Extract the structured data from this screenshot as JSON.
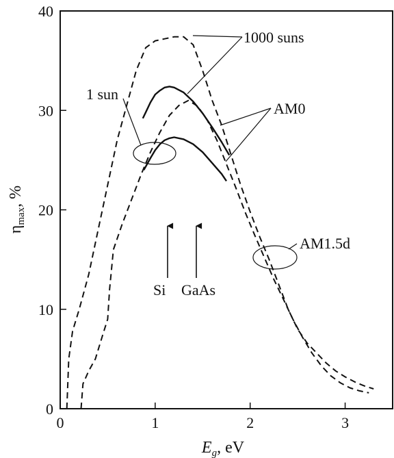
{
  "chart_data": {
    "type": "line",
    "xlabel": {
      "symbol": "E",
      "subscript": "g",
      "unit": ", eV"
    },
    "ylabel": {
      "symbol": "η",
      "subscript": "max",
      "unit": ", %"
    },
    "xlim": [
      0,
      3.5
    ],
    "ylim": [
      0,
      40
    ],
    "xticks": [
      "0",
      "1",
      "2",
      "3"
    ],
    "yticks": [
      "0",
      "10",
      "20",
      "30",
      "40"
    ],
    "grid": false,
    "series": [
      {
        "name": "AM0, 1000 suns",
        "style": "dashed",
        "points": [
          [
            0.07,
            0
          ],
          [
            0.09,
            5
          ],
          [
            0.13,
            7.8
          ],
          [
            0.2,
            10
          ],
          [
            0.3,
            13.5
          ],
          [
            0.4,
            18
          ],
          [
            0.5,
            22.5
          ],
          [
            0.6,
            27
          ],
          [
            0.7,
            30.5
          ],
          [
            0.8,
            34
          ],
          [
            0.9,
            36.3
          ],
          [
            1.0,
            37.0
          ],
          [
            1.1,
            37.2
          ],
          [
            1.2,
            37.4
          ],
          [
            1.3,
            37.4
          ],
          [
            1.4,
            36.6
          ],
          [
            1.5,
            34.0
          ],
          [
            1.6,
            31.0
          ],
          [
            1.7,
            28.5
          ],
          [
            1.8,
            25.5
          ],
          [
            1.9,
            22.5
          ],
          [
            2.0,
            19.8
          ],
          [
            2.1,
            17.3
          ],
          [
            2.2,
            15.0
          ],
          [
            2.3,
            12.5
          ],
          [
            2.4,
            10.0
          ],
          [
            2.5,
            8.0
          ],
          [
            2.6,
            6.6
          ],
          [
            2.7,
            5.6
          ],
          [
            2.8,
            4.6
          ],
          [
            2.9,
            3.8
          ],
          [
            3.0,
            3.2
          ],
          [
            3.1,
            2.7
          ],
          [
            3.2,
            2.3
          ],
          [
            3.3,
            2.0
          ]
        ]
      },
      {
        "name": "AM1.5d, 1000 suns",
        "style": "dashed",
        "points": [
          [
            0.22,
            0
          ],
          [
            0.24,
            2.5
          ],
          [
            0.3,
            3.8
          ],
          [
            0.37,
            5
          ],
          [
            0.45,
            7.5
          ],
          [
            0.5,
            9
          ],
          [
            0.52,
            12
          ],
          [
            0.56,
            16
          ],
          [
            0.65,
            18.5
          ],
          [
            0.75,
            21
          ],
          [
            0.85,
            23.5
          ],
          [
            0.95,
            25.8
          ],
          [
            1.05,
            27.8
          ],
          [
            1.15,
            29.5
          ],
          [
            1.25,
            30.5
          ],
          [
            1.35,
            31.0
          ],
          [
            1.45,
            30.4
          ],
          [
            1.55,
            29.0
          ],
          [
            1.65,
            27.0
          ],
          [
            1.75,
            24.6
          ],
          [
            1.85,
            22.2
          ],
          [
            1.95,
            19.7
          ],
          [
            2.05,
            17.4
          ],
          [
            2.15,
            15.2
          ],
          [
            2.25,
            13.0
          ],
          [
            2.35,
            11.0
          ],
          [
            2.45,
            9.0
          ],
          [
            2.55,
            7.2
          ],
          [
            2.65,
            5.6
          ],
          [
            2.75,
            4.3
          ],
          [
            2.85,
            3.3
          ],
          [
            2.95,
            2.6
          ],
          [
            3.05,
            2.1
          ],
          [
            3.15,
            1.8
          ],
          [
            3.25,
            1.6
          ]
        ]
      },
      {
        "name": "AM0, 1 sun",
        "style": "solid",
        "points": [
          [
            0.87,
            29.2
          ],
          [
            0.9,
            29.8
          ],
          [
            0.95,
            30.8
          ],
          [
            1.0,
            31.6
          ],
          [
            1.05,
            32.0
          ],
          [
            1.1,
            32.3
          ],
          [
            1.15,
            32.4
          ],
          [
            1.2,
            32.3
          ],
          [
            1.3,
            31.8
          ],
          [
            1.4,
            30.9
          ],
          [
            1.5,
            29.7
          ],
          [
            1.6,
            28.3
          ],
          [
            1.7,
            26.8
          ],
          [
            1.78,
            25.5
          ]
        ]
      },
      {
        "name": "AM1.5d, 1 sun",
        "style": "solid",
        "points": [
          [
            0.88,
            24.0
          ],
          [
            0.95,
            25.2
          ],
          [
            1.0,
            26.0
          ],
          [
            1.05,
            26.6
          ],
          [
            1.1,
            27.0
          ],
          [
            1.15,
            27.2
          ],
          [
            1.2,
            27.3
          ],
          [
            1.3,
            27.1
          ],
          [
            1.4,
            26.6
          ],
          [
            1.5,
            25.8
          ],
          [
            1.6,
            24.7
          ],
          [
            1.7,
            23.6
          ],
          [
            1.75,
            22.9
          ]
        ]
      }
    ],
    "annotations": {
      "label_1000_suns": "1000 suns",
      "label_1_sun": "1 sun",
      "label_am0": "AM0",
      "label_am15d": "AM1.5d",
      "label_si": "Si",
      "label_gaas": "GaAs"
    },
    "markers": [
      {
        "label": "Si",
        "x": 1.12
      },
      {
        "label": "GaAs",
        "x": 1.42
      }
    ]
  }
}
